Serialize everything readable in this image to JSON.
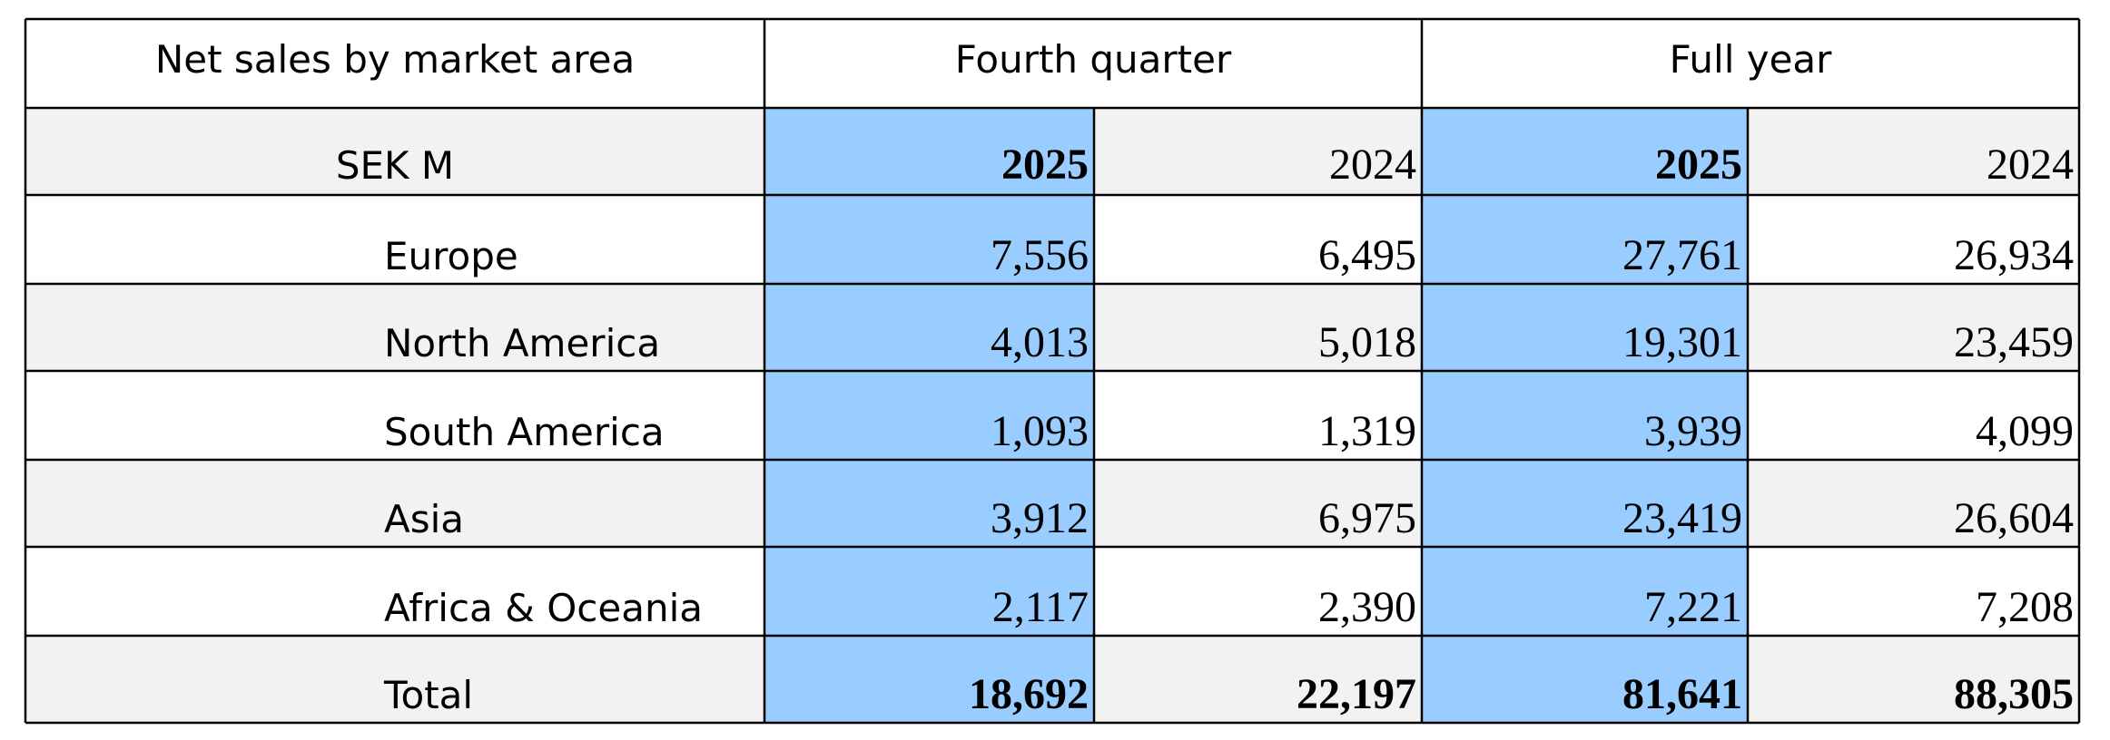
{
  "table": {
    "title": "Net sales by market area",
    "groups": [
      "Fourth quarter",
      "Full year"
    ],
    "unit": "SEK M",
    "years": [
      "2025",
      "2024",
      "2025",
      "2024"
    ],
    "rows": [
      [
        "Europe",
        "7,556",
        "6,495",
        "27,761",
        "26,934"
      ],
      [
        "North America",
        "4,013",
        "5,018",
        "19,301",
        "23,459"
      ],
      [
        "South America",
        "1,093",
        "1,319",
        "3,939",
        "4,099"
      ],
      [
        "Asia",
        "3,912",
        "6,975",
        "23,419",
        "26,604"
      ],
      [
        "Africa & Oceania",
        "2,117",
        "2,390",
        "7,221",
        "7,208"
      ],
      [
        "Total",
        "18,692",
        "22,197",
        "81,641",
        "88,305"
      ]
    ]
  }
}
